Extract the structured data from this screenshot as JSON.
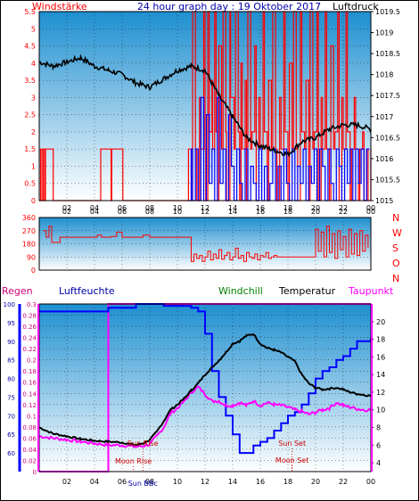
{
  "header": {
    "left": "Windstärke",
    "center": "24 hour graph day : 19 Oktober 2017",
    "right": "Luftdruck"
  },
  "compass": [
    "N",
    "W",
    "S",
    "O",
    "N"
  ],
  "bottom_labels": {
    "regen": "Regen",
    "luftfeuchte": "Luftfeuchte",
    "windchill": "Windchill",
    "temperatur": "Temperatur",
    "taupunkt": "Taupunkt"
  },
  "colors": {
    "wind_gust": "#ff0000",
    "wind_avg": "#0000ff",
    "pressure": "#000000",
    "direction": "#ff0000",
    "humidity": "#0000ff",
    "temperature": "#000000",
    "windchill": "#008000",
    "dewpoint": "#ff00ff",
    "rain": "#ff00ff",
    "sun_moon": "#cc0000",
    "sky_top": "#1e8fd0",
    "sky_bottom": "#ffffff"
  },
  "chart_data": [
    {
      "type": "line",
      "title": "24 hour graph day : 19 Oktober 2017",
      "x_ticks": [
        "02",
        "04",
        "06",
        "08",
        "10",
        "12",
        "14",
        "16",
        "18",
        "20",
        "22",
        "00"
      ],
      "x_tick_hours": [
        2,
        4,
        6,
        8,
        10,
        12,
        14,
        16,
        18,
        20,
        22,
        24
      ],
      "xlim": [
        0,
        24
      ],
      "left_axis": {
        "label": "Windstärke",
        "ylim": [
          0,
          5.5
        ],
        "ticks": [
          "0",
          "0.5",
          "1",
          "1.5",
          "2",
          "2.5",
          "3",
          "3.5",
          "4",
          "4.5",
          "5",
          "5.5"
        ]
      },
      "right_axis": {
        "label": "Luftdruck",
        "ylim": [
          1015,
          1019.5
        ],
        "ticks": [
          "1015",
          "1015.5",
          "1016",
          "1016.5",
          "1017",
          "1017.5",
          "1018",
          "1018.5",
          "1019",
          "1019.5"
        ]
      },
      "series": [
        {
          "axis": "left",
          "x": [
            0,
            0.1,
            0.2,
            0.3,
            0.4,
            0.45,
            0.5,
            1.0,
            1.01,
            4.4,
            4.45,
            5.0,
            5.2,
            5.25,
            6.0,
            6.05,
            10.7,
            10.8,
            11.0,
            11.1,
            11.3,
            11.4,
            11.6,
            11.7,
            11.9,
            12.0,
            12.05,
            12.2,
            12.3,
            12.5,
            12.55,
            12.7,
            12.8,
            12.9,
            13.0,
            13.2,
            13.3,
            13.5,
            13.55,
            13.8,
            13.85,
            14.1,
            14.2,
            14.4,
            14.5,
            14.6,
            14.7,
            14.9,
            15.0,
            15.1,
            15.3,
            15.4,
            15.6,
            15.7,
            15.9,
            16.0,
            16.2,
            16.3,
            16.5,
            16.6,
            16.8,
            16.9,
            17.1,
            17.2,
            17.4,
            17.5,
            17.7,
            17.8,
            18.0,
            18.1,
            18.3,
            18.4,
            18.6,
            18.7,
            18.9,
            19.0,
            19.2,
            19.3,
            19.5,
            19.6,
            19.8,
            19.9,
            20.1,
            20.2,
            20.4,
            20.5,
            20.7,
            20.8,
            21.0,
            21.1,
            21.3,
            21.4,
            21.6,
            21.7,
            21.9,
            22.0,
            22.2,
            22.3,
            22.5,
            22.6,
            22.8,
            22.9,
            23.1,
            23.2,
            23.4,
            23.5,
            23.7,
            23.8,
            24.0
          ],
          "values": [
            0,
            1.5,
            0,
            1.5,
            0,
            1.5,
            1.5,
            1.5,
            0,
            0,
            1.5,
            1.5,
            0,
            1.5,
            1.5,
            0,
            0,
            1.5,
            0,
            5.5,
            1.5,
            0,
            3.0,
            1.5,
            5.5,
            1.5,
            0,
            5.5,
            2.0,
            3.5,
            1.5,
            5.5,
            2.0,
            0,
            4.5,
            1.5,
            5.5,
            2.0,
            0,
            5.5,
            3.0,
            1.5,
            5.5,
            2.0,
            0,
            4.0,
            1.5,
            3.5,
            0,
            5.5,
            1.5,
            2.0,
            4.5,
            0,
            3.0,
            1.5,
            5.5,
            2.0,
            0,
            3.5,
            1.5,
            5.5,
            1.5,
            0,
            3.0,
            1.5,
            5.5,
            2.0,
            0,
            4.0,
            1.5,
            5.5,
            1.5,
            0,
            5.5,
            2.0,
            1.5,
            3.5,
            0,
            5.5,
            1.5,
            2.0,
            5.5,
            0,
            3.0,
            1.5,
            5.5,
            1.5,
            0,
            4.5,
            1.5,
            2.0,
            5.5,
            0,
            3.0,
            1.5,
            5.5,
            2.0,
            0,
            1.5,
            3.0,
            1.5,
            0,
            1.5,
            2.0,
            0,
            1.5,
            0,
            1.5
          ]
        },
        {
          "axis": "left",
          "x": [
            10.8,
            11.0,
            11.1,
            11.3,
            11.5,
            11.7,
            11.9,
            12.1,
            12.3,
            12.5,
            12.7,
            12.9,
            13.1,
            13.3,
            13.5,
            13.7,
            13.9,
            14.1,
            14.3,
            14.5,
            14.7,
            14.9,
            15.1,
            15.3,
            15.5,
            15.7,
            15.9,
            16.1,
            16.3,
            16.5,
            16.7,
            16.9,
            17.1,
            17.3,
            17.5,
            17.7,
            17.9,
            18.1,
            18.3,
            18.5,
            18.7,
            18.9,
            19.1,
            19.3,
            19.5,
            19.7,
            19.9,
            20.1,
            20.3,
            20.5,
            20.7,
            20.9,
            21.1,
            21.3,
            21.5,
            21.7,
            21.9,
            22.1,
            22.3,
            22.5,
            22.7,
            22.9,
            23.1,
            23.3,
            23.5,
            23.7,
            23.9
          ],
          "values": [
            0,
            1.5,
            0,
            1.5,
            0,
            3.0,
            0,
            2.5,
            0.5,
            1.5,
            0,
            3.0,
            0.5,
            1.5,
            0,
            2.5,
            1.0,
            0,
            1.5,
            0.5,
            0,
            1.5,
            0,
            1.0,
            0.5,
            0,
            1.5,
            0,
            1.0,
            0,
            0.5,
            1.5,
            0,
            1.0,
            0,
            1.5,
            0.5,
            0,
            1.5,
            0,
            1.0,
            0.5,
            1.5,
            0,
            1.0,
            0.5,
            1.5,
            0,
            1.5,
            1.0,
            0,
            1.5,
            0.5,
            0,
            1.5,
            1.0,
            0,
            1.5,
            0.5,
            1.5,
            0,
            1.5,
            0.5,
            1.5,
            0,
            1.5,
            1.5
          ]
        },
        {
          "axis": "right",
          "x": [
            0,
            1,
            2,
            3,
            4,
            5,
            6,
            7,
            8,
            9,
            10,
            11,
            12,
            13,
            14,
            15,
            16,
            17,
            18,
            19,
            20,
            21,
            22,
            23,
            24
          ],
          "values": [
            1018.3,
            1018.2,
            1018.3,
            1018.4,
            1018.2,
            1018.1,
            1018.0,
            1017.8,
            1017.7,
            1017.9,
            1018.1,
            1018.2,
            1018.1,
            1017.5,
            1017.0,
            1016.5,
            1016.3,
            1016.2,
            1016.1,
            1016.4,
            1016.5,
            1016.7,
            1016.8,
            1016.8,
            1016.7
          ]
        }
      ]
    },
    {
      "type": "scatter",
      "ylabel": "NWSON",
      "ylim": [
        0,
        360
      ],
      "ticks": [
        "0",
        "90",
        "180",
        "270",
        "360"
      ],
      "x_ticks": [
        "02",
        "04",
        "06",
        "08",
        "10",
        "12",
        "14",
        "16",
        "18",
        "20",
        "22",
        "00"
      ],
      "x_tick_hours": [
        2,
        4,
        6,
        8,
        10,
        12,
        14,
        16,
        18,
        20,
        22,
        24
      ],
      "xlim": [
        0,
        24
      ],
      "series": [
        {
          "x": [
            0.3,
            0.5,
            0.7,
            0.9,
            1.5,
            2.0,
            3.0,
            4.0,
            4.2,
            4.5,
            5.0,
            5.2,
            5.6,
            6.0,
            7.0,
            7.5,
            8.0,
            9.0,
            9.5,
            10.0,
            10.5,
            11.0,
            11.2,
            11.4,
            11.6,
            11.8,
            12.0,
            12.2,
            12.4,
            12.6,
            12.8,
            13.0,
            13.2,
            13.4,
            13.6,
            13.8,
            14.0,
            14.2,
            14.4,
            14.6,
            14.8,
            15.0,
            15.2,
            15.4,
            15.6,
            15.8,
            16.0,
            16.2,
            16.4,
            16.6,
            16.8,
            17.0,
            17.2,
            17.5,
            18.0,
            19.0,
            19.5,
            20.0,
            20.2,
            20.4,
            20.6,
            20.8,
            21.0,
            21.2,
            21.4,
            21.6,
            21.8,
            22.0,
            22.2,
            22.4,
            22.6,
            22.8,
            23.0,
            23.2,
            23.4,
            23.6,
            23.8
          ],
          "values": [
            270,
            225,
            300,
            190,
            225,
            225,
            225,
            225,
            240,
            225,
            225,
            230,
            260,
            225,
            225,
            240,
            225,
            225,
            225,
            225,
            225,
            60,
            110,
            80,
            100,
            60,
            90,
            130,
            70,
            110,
            80,
            140,
            75,
            100,
            120,
            70,
            90,
            150,
            80,
            100,
            60,
            120,
            90,
            80,
            110,
            70,
            100,
            90,
            120,
            80,
            90,
            100,
            90,
            90,
            90,
            90,
            90,
            280,
            130,
            260,
            90,
            300,
            120,
            250,
            80,
            270,
            140,
            230,
            90,
            280,
            110,
            250,
            100,
            270,
            130,
            240,
            150
          ]
        }
      ]
    },
    {
      "type": "line",
      "x_ticks": [
        "02",
        "04",
        "06",
        "08",
        "10",
        "12",
        "14",
        "16",
        "18",
        "20",
        "22",
        "00"
      ],
      "x_tick_hours": [
        2,
        4,
        6,
        8,
        10,
        12,
        14,
        16,
        18,
        20,
        22,
        24
      ],
      "xlim": [
        0,
        24
      ],
      "rain_axis": {
        "label": "Regen",
        "ylim": [
          0,
          0.3
        ],
        "ticks": [
          "0",
          "0.02",
          "0.04",
          "0.06",
          "0.08",
          "0.1",
          "0.12",
          "0.14",
          "0.16",
          "0.18",
          "0.2",
          "0.22",
          "0.24",
          "0.26",
          "0.28",
          "0.3"
        ]
      },
      "humidity_axis": {
        "label": "Luftfeuchte",
        "ylim": [
          55,
          100
        ],
        "ticks": [
          "60",
          "65",
          "70",
          "75",
          "80",
          "85",
          "90",
          "95",
          "100"
        ]
      },
      "temp_axis": {
        "label": "Temperatur",
        "ylim": [
          3,
          22
        ],
        "ticks": [
          "4",
          "6",
          "8",
          "10",
          "12",
          "14",
          "16",
          "18",
          "20"
        ]
      },
      "annotations": [
        {
          "text": "Sun Rise",
          "hour": 7.5
        },
        {
          "text": "Moon Rise",
          "hour": 7.2
        },
        {
          "text": "Sun Set",
          "hour": 18.3
        },
        {
          "text": "Moon Set",
          "hour": 18.3
        },
        {
          "text": "Sun BBc",
          "hour": 7.5
        }
      ],
      "series": [
        {
          "name": "Luftfeuchte",
          "axis": "humidity",
          "x": [
            0,
            1,
            2,
            3,
            4,
            5,
            6,
            7,
            8,
            9,
            10,
            11,
            11.5,
            12,
            12.5,
            13,
            13.5,
            14,
            14.5,
            15,
            15.5,
            16,
            16.5,
            17,
            17.5,
            18,
            18.5,
            19,
            19.5,
            20,
            20.5,
            21,
            21.5,
            22,
            22.5,
            23,
            23.5,
            24
          ],
          "values": [
            98,
            98,
            98,
            98,
            98,
            99,
            99,
            100,
            100,
            99.5,
            99.5,
            99,
            98,
            92,
            82,
            75,
            70,
            65,
            60,
            60,
            62,
            63,
            64,
            66,
            68,
            70,
            71,
            73,
            76,
            80,
            82,
            83,
            85,
            86,
            88,
            90,
            90,
            91
          ]
        },
        {
          "name": "Temperatur",
          "axis": "temp",
          "x": [
            0,
            1,
            2,
            3,
            4,
            5,
            6,
            7,
            7.5,
            8,
            8.5,
            9,
            9.5,
            10,
            10.5,
            11,
            11.5,
            12,
            12.5,
            13,
            13.5,
            14,
            14.5,
            15,
            15.5,
            16,
            16.5,
            17,
            17.5,
            18,
            18.5,
            19,
            19.5,
            20,
            20.5,
            21,
            21.5,
            22,
            22.5,
            23,
            23.5,
            24
          ],
          "values": [
            8.0,
            7.3,
            7.0,
            6.7,
            6.5,
            6.4,
            6.3,
            6.0,
            6.2,
            6.6,
            7.5,
            8.7,
            10.0,
            10.6,
            11.3,
            12.2,
            13.0,
            14.0,
            14.8,
            15.6,
            16.5,
            17.5,
            17.8,
            18.4,
            18.6,
            17.5,
            17.0,
            16.8,
            16.5,
            16.0,
            15.5,
            14.0,
            13.0,
            12.5,
            12.3,
            12.4,
            12.5,
            12.3,
            12.0,
            11.8,
            11.7,
            11.6
          ]
        },
        {
          "name": "Taupunkt",
          "axis": "temp",
          "x": [
            0,
            1,
            2,
            3,
            4,
            5,
            6,
            7,
            7.5,
            8,
            8.5,
            9,
            9.5,
            10,
            10.5,
            11,
            11.5,
            12,
            12.5,
            13,
            13.5,
            14,
            14.5,
            15,
            15.5,
            16,
            16.5,
            17,
            17.5,
            18,
            18.5,
            19,
            19.5,
            20,
            20.5,
            21,
            21.5,
            22,
            22.5,
            23,
            23.5,
            24
          ],
          "values": [
            7.0,
            6.8,
            6.6,
            6.4,
            6.2,
            6.0,
            6.0,
            5.8,
            5.9,
            6.1,
            7.0,
            8.0,
            9.6,
            10.2,
            11.0,
            12.0,
            12.6,
            11.8,
            11.0,
            11.0,
            10.5,
            10.5,
            10.8,
            10.5,
            11.0,
            10.5,
            10.8,
            10.6,
            10.5,
            10.3,
            10.0,
            9.8,
            9.5,
            9.7,
            10.0,
            10.2,
            10.8,
            10.5,
            10.3,
            10.1,
            10.0,
            10.0
          ]
        },
        {
          "name": "Regen",
          "axis": "rain",
          "x": [
            0,
            5.0,
            5.0,
            24
          ],
          "values": [
            0,
            0,
            0.3,
            0.3
          ]
        }
      ]
    }
  ]
}
